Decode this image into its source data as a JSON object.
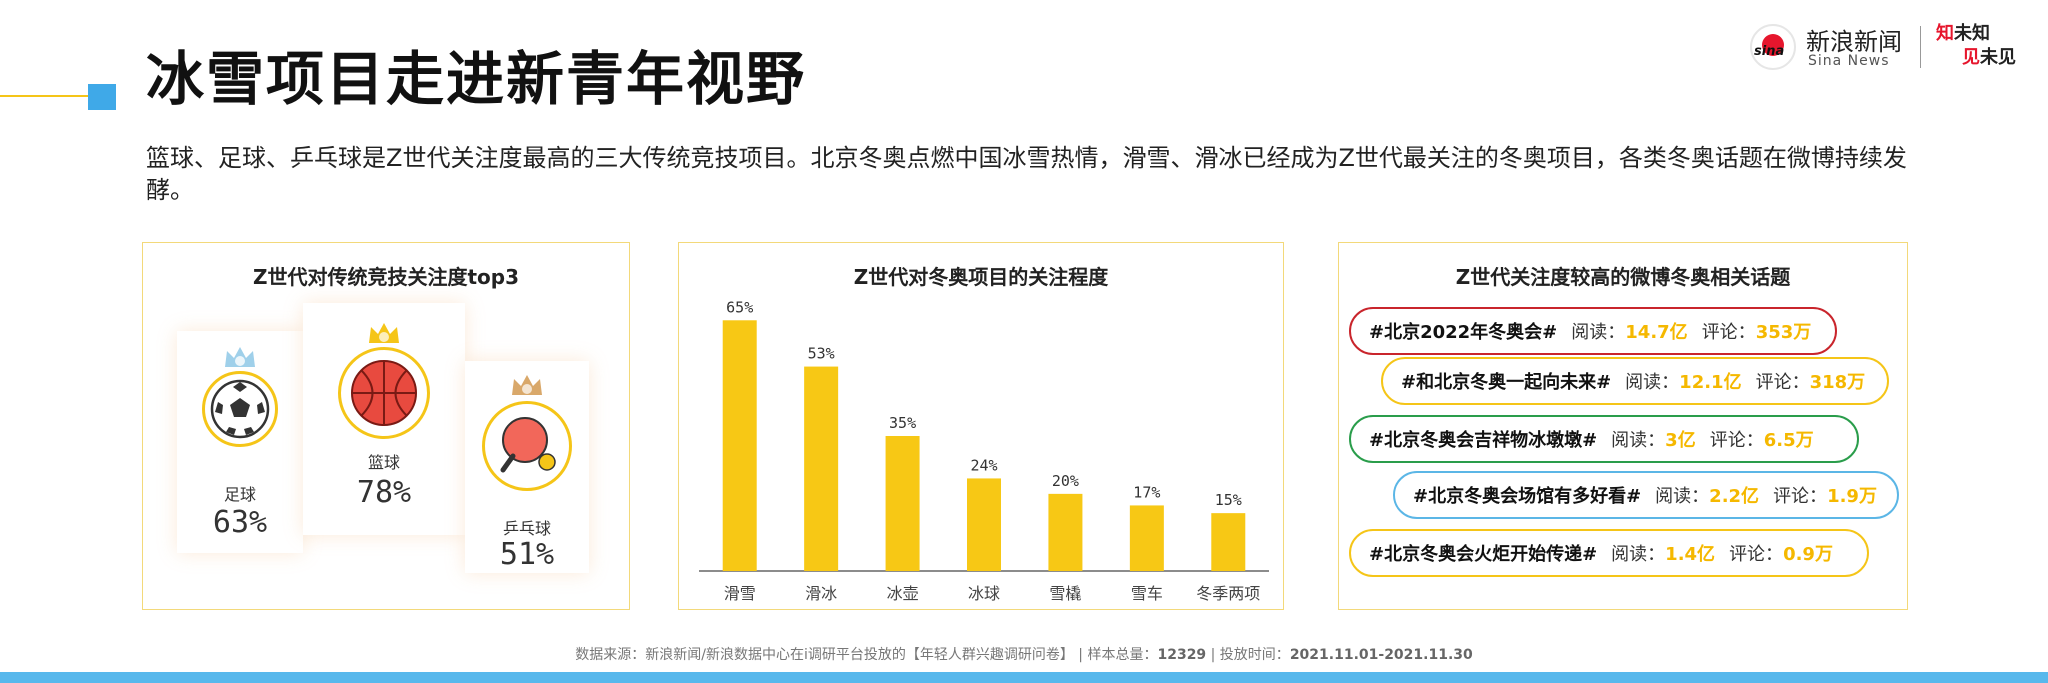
{
  "title": "冰雪项目走进新青年视野",
  "logo": {
    "cn": "新浪新闻",
    "en": "Sina News",
    "mark": "sina",
    "slogan_1_red": "知",
    "slogan_1_black": "未知",
    "slogan_2_red": "见",
    "slogan_2_black": "未见"
  },
  "intro": "篮球、足球、乒乓球是Z世代关注度最高的三大传统竞技项目。北京冬奥点燃中国冰雪热情，滑雪、滑冰已经成为Z世代最关注的冬奥项目，各类冬奥话题在微博持续发酵。",
  "left_panel": {
    "title": "Z世代对传统竞技关注度top3",
    "cards": [
      {
        "rank": "2",
        "label": "足球",
        "value": "63%",
        "icon": "soccer-ball-icon",
        "crown_color": "#9fd0ea"
      },
      {
        "rank": "1",
        "label": "篮球",
        "value": "78%",
        "icon": "basketball-icon",
        "crown_color": "#f5c518"
      },
      {
        "rank": "3",
        "label": "乒乓球",
        "value": "51%",
        "icon": "ping-pong-icon",
        "crown_color": "#d9a86a"
      }
    ]
  },
  "chart_data": {
    "type": "bar",
    "title": "Z世代对冬奥项目的关注程度",
    "categories": [
      "滑雪",
      "滑冰",
      "冰壶",
      "冰球",
      "雪橇",
      "雪车",
      "冬季两项"
    ],
    "values": [
      65,
      53,
      35,
      24,
      20,
      17,
      15
    ],
    "data_labels": [
      "65%",
      "53%",
      "35%",
      "24%",
      "20%",
      "17%",
      "15%"
    ],
    "ylim": [
      0,
      70
    ],
    "bar_color": "#f7c815",
    "grid": false
  },
  "right_panel": {
    "title": "Z世代关注度较高的微博冬奥相关话题",
    "read_label": "阅读：",
    "comment_label": "评论：",
    "topics": [
      {
        "tag": "#北京2022年冬奥会#",
        "reads": "14.7亿",
        "comments": "353万",
        "border": "#c9252c"
      },
      {
        "tag": "#和北京冬奥一起向未来#",
        "reads": "12.1亿",
        "comments": "318万",
        "border": "#f5c518"
      },
      {
        "tag": "#北京冬奥会吉祥物冰墩墩#",
        "reads": "3亿",
        "comments": "6.5万",
        "border": "#2a9d4b"
      },
      {
        "tag": "#北京冬奥会场馆有多好看#",
        "reads": "2.2亿",
        "comments": "1.9万",
        "border": "#5bb6e6"
      },
      {
        "tag": "#北京冬奥会火炬开始传递#",
        "reads": "1.4亿",
        "comments": "0.9万",
        "border": "#f5c518"
      }
    ]
  },
  "source": {
    "text": "数据来源：新浪新闻/新浪数据中心在i调研平台投放的【年轻人群兴趣调研问卷】",
    "sample_label": "| 样本总量：",
    "sample": "12329",
    "period_label": "| 投放时间：",
    "period": "2021.11.01-2021.11.30"
  }
}
